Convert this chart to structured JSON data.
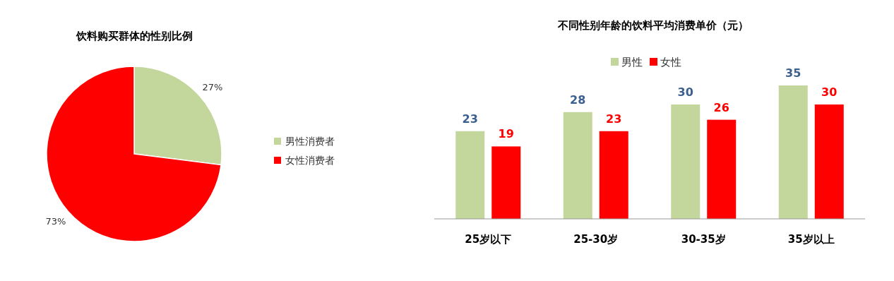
{
  "chart_data": [
    {
      "type": "pie",
      "title": "饮料购买群体的性别比例",
      "categories": [
        "男性消费者",
        "女性消费者"
      ],
      "values": [
        27,
        73
      ],
      "colors": [
        "#c3d69b",
        "#ff0000"
      ],
      "value_labels": [
        "27%",
        "73%"
      ],
      "legend": "right"
    },
    {
      "type": "bar",
      "title": "不同性别年龄的饮料平均消费单价（元）",
      "categories": [
        "25岁以下",
        "25-30岁",
        "30-35岁",
        "35岁以上"
      ],
      "data_labels": true,
      "legend": "top",
      "series": [
        {
          "name": "男性",
          "color": "#c3d69b",
          "values": [
            23,
            28,
            30,
            35
          ]
        },
        {
          "name": "女性",
          "color": "#ff0000",
          "values": [
            19,
            23,
            26,
            30
          ]
        }
      ]
    }
  ]
}
